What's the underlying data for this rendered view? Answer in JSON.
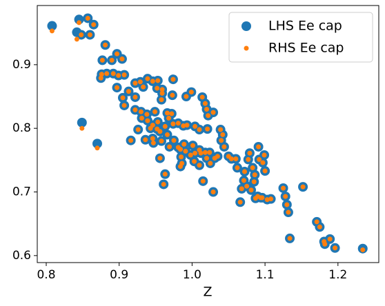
{
  "chart_data": {
    "type": "scatter",
    "xlabel": "Z",
    "xlim": [
      0.7877,
      1.256
    ],
    "ylim": [
      0.589,
      0.993
    ],
    "xticks": [
      0.8,
      0.9,
      {
        "value": 1,
        "label": "1.0"
      },
      1.1,
      1.2
    ],
    "yticks": [
      0.6,
      0.7,
      0.8,
      0.9
    ],
    "legend": "upper right",
    "x": [
      0.808,
      0.845,
      0.857,
      0.865,
      0.86,
      0.842,
      0.848,
      0.849,
      0.87,
      0.881,
      0.877,
      0.89,
      0.897,
      0.904,
      0.876,
      0.883,
      0.892,
      0.899,
      0.907,
      0.875,
      0.897,
      0.905,
      0.913,
      0.907,
      0.922,
      0.929,
      0.933,
      0.939,
      0.946,
      0.953,
      0.952,
      0.959,
      0.974,
      0.973,
      0.959,
      0.958,
      0.922,
      0.922,
      0.93,
      0.938,
      0.949,
      0.966,
      0.972,
      0.992,
      0.999,
      1.014,
      1.018,
      1.02,
      1.022,
      1.029,
      0.931,
      0.926,
      0.916,
      0.939,
      0.943,
      0.946,
      0.953,
      0.952,
      0.963,
      0.968,
      0.974,
      0.981,
      0.988,
      0.993,
      1.004,
      1.01,
      1.021,
      0.936,
      0.946,
      0.947,
      0.956,
      0.958,
      0.966,
      0.969,
      0.975,
      0.981,
      0.984,
      0.985,
      0.989,
      0.991,
      1.001,
      0.998,
      1.004,
      1.01,
      1.012,
      1.018,
      1.02,
      1.024,
      0.956,
      0.984,
      0.986,
      1.003,
      1.01,
      1.015,
      1.025,
      1.031,
      1.035,
      1.04,
      1.039,
      1.042,
      1.044,
      1.05,
      1.054,
      1.06,
      1.062,
      1.072,
      1.077,
      1.079,
      1.083,
      1.071,
      1.068,
      1.075,
      1.081,
      1.066,
      1.085,
      1.086,
      1.092,
      1.091,
      1.097,
      1.09,
      1.087,
      1.094,
      1.099,
      1.1,
      1.096,
      1.103,
      1.108,
      1.125,
      1.128,
      1.13,
      1.132,
      1.134,
      1.152,
      1.171,
      1.175,
      1.181,
      1.182,
      1.189,
      1.196,
      1.234,
      0.961,
      1.029,
      0.963
    ],
    "series": [
      {
        "name": "LHS Ee cap",
        "color": "#1f77b4",
        "values": [
          0.961,
          0.971,
          0.973,
          0.963,
          0.947,
          0.951,
          0.947,
          0.809,
          0.776,
          0.931,
          0.907,
          0.907,
          0.917,
          0.909,
          0.885,
          0.886,
          0.886,
          0.883,
          0.884,
          0.879,
          0.864,
          0.848,
          0.858,
          0.836,
          0.871,
          0.873,
          0.865,
          0.878,
          0.874,
          0.875,
          0.863,
          0.861,
          0.877,
          0.852,
          0.855,
          0.845,
          0.849,
          0.829,
          0.826,
          0.822,
          0.826,
          0.824,
          0.823,
          0.85,
          0.857,
          0.849,
          0.839,
          0.83,
          0.82,
          0.825,
          0.816,
          0.798,
          0.781,
          0.812,
          0.8,
          0.805,
          0.81,
          0.799,
          0.803,
          0.816,
          0.807,
          0.808,
          0.804,
          0.805,
          0.803,
          0.798,
          0.799,
          0.782,
          0.784,
          0.777,
          0.795,
          0.78,
          0.79,
          0.771,
          0.781,
          0.77,
          0.767,
          0.755,
          0.775,
          0.764,
          0.773,
          0.758,
          0.761,
          0.766,
          0.761,
          0.762,
          0.753,
          0.762,
          0.753,
          0.74,
          0.745,
          0.748,
          0.742,
          0.717,
          0.745,
          0.753,
          0.756,
          0.781,
          0.798,
          0.79,
          0.771,
          0.756,
          0.752,
          0.752,
          0.738,
          0.732,
          0.751,
          0.761,
          0.738,
          0.718,
          0.705,
          0.709,
          0.703,
          0.684,
          0.716,
          0.727,
          0.751,
          0.771,
          0.746,
          0.693,
          0.69,
          0.691,
          0.758,
          0.733,
          0.691,
          0.688,
          0.689,
          0.706,
          0.693,
          0.68,
          0.668,
          0.627,
          0.708,
          0.653,
          0.645,
          0.622,
          0.618,
          0.626,
          0.612,
          0.611,
          0.712,
          0.7,
          0.728
        ]
      },
      {
        "name": "RHS Ee cap",
        "color": "#ff7f0e",
        "values": [
          0.953,
          0.966,
          0.973,
          0.963,
          0.947,
          0.94,
          0.947,
          0.8,
          0.769,
          0.931,
          0.907,
          0.907,
          0.917,
          0.909,
          0.885,
          0.886,
          0.886,
          0.883,
          0.884,
          0.879,
          0.864,
          0.848,
          0.858,
          0.836,
          0.871,
          0.873,
          0.865,
          0.878,
          0.874,
          0.875,
          0.863,
          0.861,
          0.877,
          0.852,
          0.855,
          0.845,
          0.849,
          0.829,
          0.826,
          0.822,
          0.826,
          0.824,
          0.823,
          0.85,
          0.857,
          0.849,
          0.839,
          0.83,
          0.82,
          0.825,
          0.816,
          0.798,
          0.781,
          0.812,
          0.8,
          0.805,
          0.81,
          0.799,
          0.803,
          0.816,
          0.807,
          0.808,
          0.804,
          0.805,
          0.803,
          0.798,
          0.799,
          0.782,
          0.784,
          0.777,
          0.795,
          0.78,
          0.79,
          0.771,
          0.781,
          0.77,
          0.767,
          0.755,
          0.775,
          0.764,
          0.773,
          0.758,
          0.761,
          0.766,
          0.761,
          0.762,
          0.753,
          0.762,
          0.753,
          0.74,
          0.745,
          0.748,
          0.742,
          0.717,
          0.745,
          0.753,
          0.756,
          0.781,
          0.798,
          0.79,
          0.771,
          0.756,
          0.752,
          0.752,
          0.738,
          0.732,
          0.751,
          0.761,
          0.738,
          0.718,
          0.705,
          0.709,
          0.703,
          0.684,
          0.716,
          0.727,
          0.751,
          0.771,
          0.746,
          0.693,
          0.69,
          0.691,
          0.758,
          0.733,
          0.691,
          0.688,
          0.689,
          0.706,
          0.693,
          0.68,
          0.668,
          0.627,
          0.708,
          0.653,
          0.645,
          0.622,
          0.618,
          0.626,
          0.612,
          0.609,
          0.712,
          0.7,
          0.728
        ]
      }
    ]
  }
}
